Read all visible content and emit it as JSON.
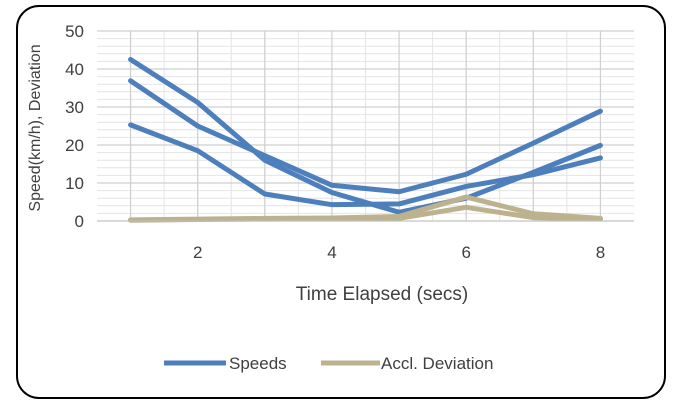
{
  "chart_data": {
    "type": "line",
    "title": "",
    "xlabel": "Time Elapsed (secs)",
    "ylabel": "Speed(km/h), Deviation",
    "xlim": [
      1,
      8
    ],
    "ylim": [
      0,
      50
    ],
    "x_ticks": [
      2,
      4,
      6,
      8
    ],
    "y_ticks": [
      0,
      10,
      20,
      30,
      40,
      50
    ],
    "grid": true,
    "legend_position": "bottom",
    "legend": [
      {
        "label": "Speeds",
        "color": "#4e7fbd"
      },
      {
        "label": "Accl. Deviation",
        "color": "#bdb28e"
      }
    ],
    "series": [
      {
        "name": "Speeds",
        "color": "#4e7fbd",
        "x": [
          1,
          2,
          3,
          4,
          5,
          6,
          7,
          8
        ],
        "values": [
          42.5,
          31.2,
          16.0,
          7.5,
          2.3,
          6.0,
          12.8,
          19.9
        ]
      },
      {
        "name": "Speeds",
        "color": "#4e7fbd",
        "x": [
          1,
          2,
          3,
          4,
          5,
          6,
          7,
          8
        ],
        "values": [
          36.9,
          25.0,
          17.2,
          9.4,
          7.7,
          12.3,
          20.5,
          28.9
        ]
      },
      {
        "name": "Speeds",
        "color": "#4e7fbd",
        "x": [
          1,
          2,
          3,
          4,
          5,
          6,
          7,
          8
        ],
        "values": [
          25.3,
          18.5,
          7.1,
          4.3,
          4.5,
          9.1,
          12.2,
          16.6
        ]
      },
      {
        "name": "Accl. Deviation",
        "color": "#bdb28e",
        "x": [
          1,
          2,
          3,
          4,
          5,
          6,
          7,
          8
        ],
        "values": [
          0.3,
          0.5,
          0.7,
          0.8,
          1.2,
          6.3,
          1.9,
          0.7
        ]
      },
      {
        "name": "Accl. Deviation",
        "color": "#bdb28e",
        "x": [
          1,
          2,
          3,
          4,
          5,
          6,
          7,
          8
        ],
        "values": [
          0.2,
          0.4,
          0.5,
          0.6,
          0.7,
          3.6,
          0.9,
          0.5
        ]
      }
    ]
  }
}
